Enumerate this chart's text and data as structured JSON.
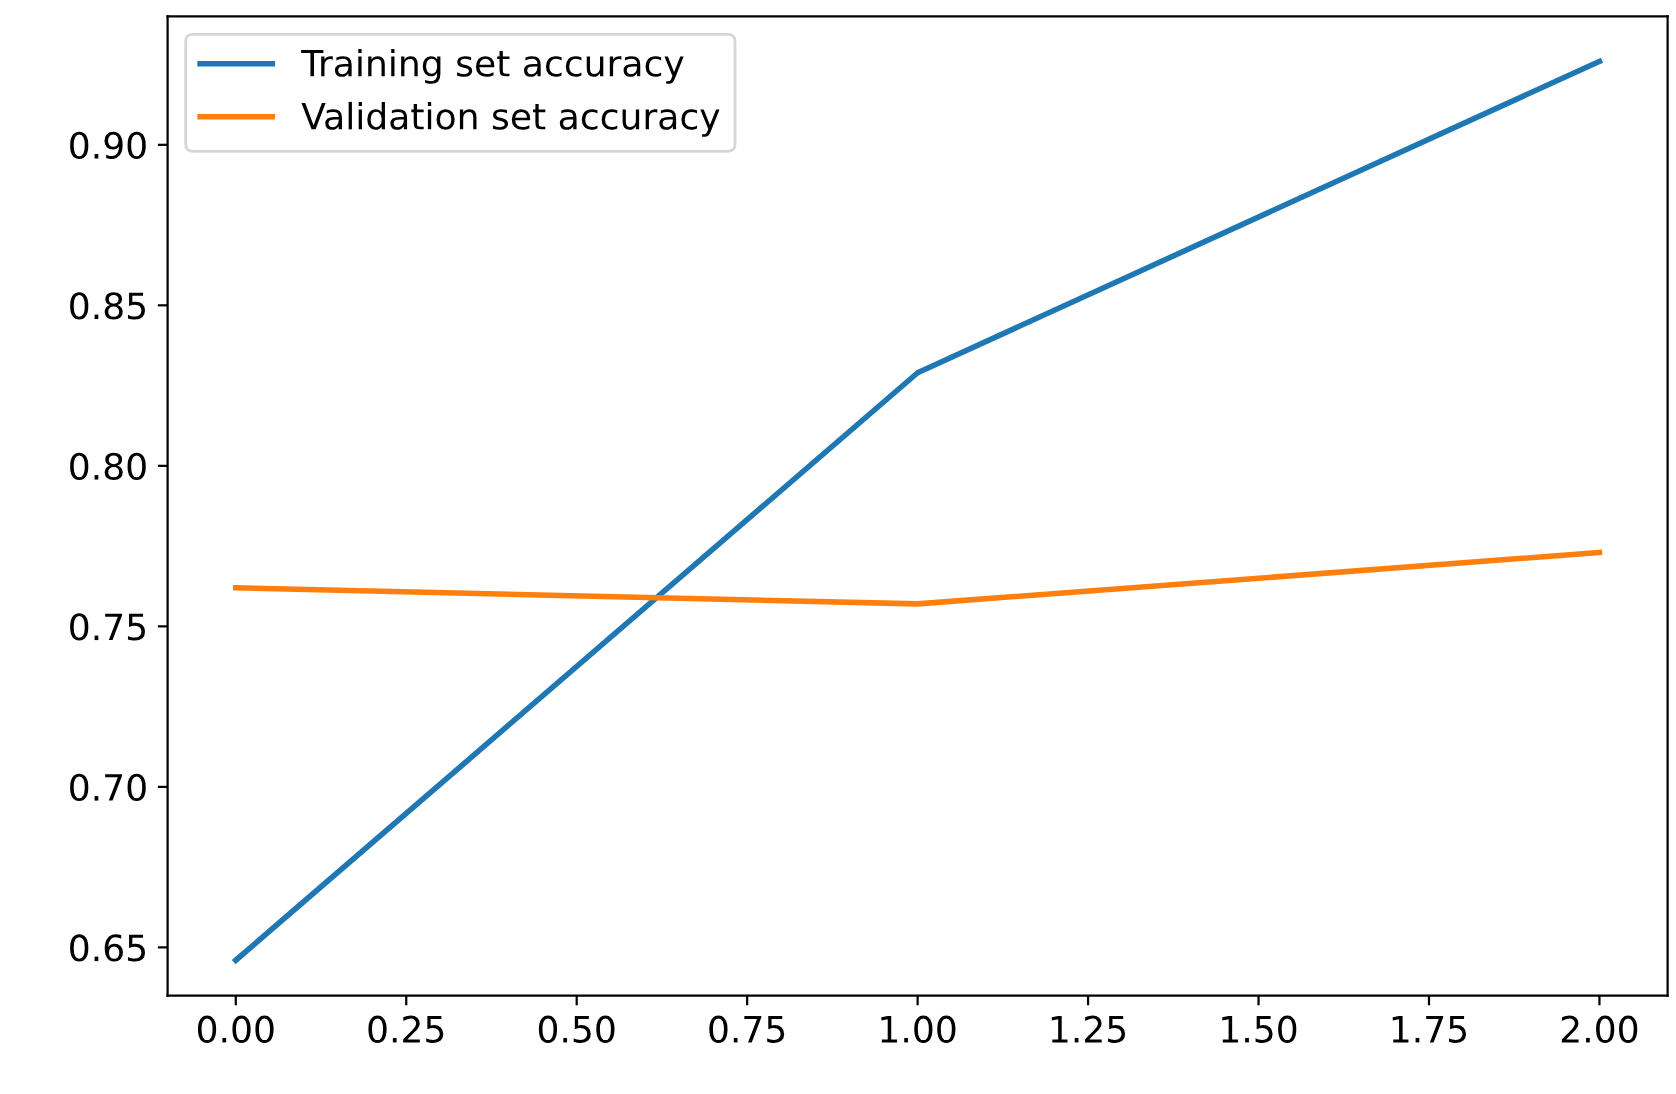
{
  "chart_data": {
    "type": "line",
    "x": [
      0,
      1,
      2
    ],
    "series": [
      {
        "name": "Training set accuracy",
        "color": "#1f77b4",
        "values": [
          0.646,
          0.829,
          0.926
        ]
      },
      {
        "name": "Validation set accuracy",
        "color": "#ff7f0e",
        "values": [
          0.762,
          0.757,
          0.773
        ]
      }
    ],
    "xlim": [
      -0.1,
      2.1
    ],
    "xticks": [
      {
        "value": 0,
        "label": "0.00"
      },
      {
        "value": 0.25,
        "label": "0.25"
      },
      {
        "value": 0.5,
        "label": "0.50"
      },
      {
        "value": 0.75,
        "label": "0.75"
      },
      {
        "value": 1,
        "label": "1.00"
      },
      {
        "value": 1.25,
        "label": "1.25"
      },
      {
        "value": 1.5,
        "label": "1.50"
      },
      {
        "value": 1.75,
        "label": "1.75"
      },
      {
        "value": 2,
        "label": "2.00"
      }
    ],
    "ylim": [
      0.635,
      0.94
    ],
    "yticks": [
      {
        "value": 0.65,
        "label": "0.65"
      },
      {
        "value": 0.7,
        "label": "0.70"
      },
      {
        "value": 0.75,
        "label": "0.75"
      },
      {
        "value": 0.8,
        "label": "0.80"
      },
      {
        "value": 0.85,
        "label": "0.85"
      },
      {
        "value": 0.9,
        "label": "0.90"
      }
    ],
    "legend": "upper left",
    "grid": false,
    "marker": "none",
    "line_style": "solid"
  }
}
